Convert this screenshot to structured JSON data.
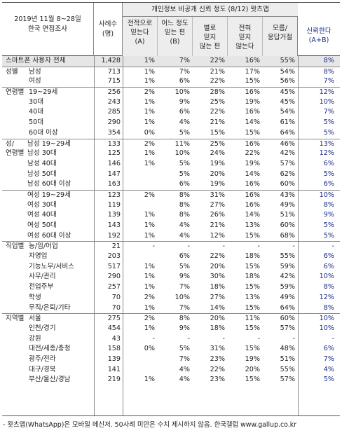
{
  "header": {
    "subject": [
      "2019년 11월 8~28일",
      "한국 면접조사"
    ],
    "count": [
      "사례수",
      "(명)"
    ],
    "group_title": "개인정보 비공개 신뢰 정도 (8/12) 왓츠앱",
    "columns": [
      [
        "전적으로",
        "믿는다",
        "(A)"
      ],
      [
        "어느 정도",
        "믿는 편",
        "(B)"
      ],
      [
        "별로",
        "믿지",
        "않는 편"
      ],
      [
        "전혀",
        "믿지",
        "않는다"
      ],
      [
        "모름/",
        "응답거절"
      ]
    ],
    "trust": [
      "신뢰한다",
      "(A+B)"
    ]
  },
  "rows": [
    {
      "cat": "",
      "label": "스마트폰 사용자 전체",
      "n": "1,428",
      "v": [
        "1%",
        "7%",
        "22%",
        "16%",
        "55%"
      ],
      "t": "8%",
      "grey": true,
      "sep": false,
      "indent": 1
    },
    {
      "cat": "성별",
      "label": "남성",
      "n": "713",
      "v": [
        "1%",
        "7%",
        "21%",
        "17%",
        "54%"
      ],
      "t": "8%",
      "grey": false,
      "sep": true,
      "indent": 2
    },
    {
      "cat": "",
      "label": "여성",
      "n": "715",
      "v": [
        "1%",
        "6%",
        "22%",
        "15%",
        "56%"
      ],
      "t": "7%",
      "grey": false,
      "sep": false,
      "indent": 2
    },
    {
      "cat": "연령별",
      "label": "19~29세",
      "n": "256",
      "v": [
        "2%",
        "10%",
        "28%",
        "16%",
        "45%"
      ],
      "t": "12%",
      "grey": false,
      "sep": true,
      "indent": 2
    },
    {
      "cat": "",
      "label": "30대",
      "n": "243",
      "v": [
        "1%",
        "9%",
        "25%",
        "19%",
        "45%"
      ],
      "t": "10%",
      "grey": false,
      "sep": false,
      "indent": 2
    },
    {
      "cat": "",
      "label": "40대",
      "n": "285",
      "v": [
        "1%",
        "6%",
        "22%",
        "16%",
        "54%"
      ],
      "t": "7%",
      "grey": false,
      "sep": false,
      "indent": 2
    },
    {
      "cat": "",
      "label": "50대",
      "n": "290",
      "v": [
        "1%",
        "4%",
        "21%",
        "14%",
        "61%"
      ],
      "t": "5%",
      "grey": false,
      "sep": false,
      "indent": 2
    },
    {
      "cat": "",
      "label": "60대 이상",
      "n": "354",
      "v": [
        "0%",
        "5%",
        "15%",
        "15%",
        "64%"
      ],
      "t": "5%",
      "grey": false,
      "sep": false,
      "indent": 2
    },
    {
      "cat": "성/",
      "label": "남성 19~29세",
      "n": "133",
      "v": [
        "2%",
        "11%",
        "25%",
        "16%",
        "46%"
      ],
      "t": "13%",
      "grey": false,
      "sep": true,
      "indent": 3
    },
    {
      "cat": "연령별",
      "label": "남성 30대",
      "n": "125",
      "v": [
        "1%",
        "10%",
        "24%",
        "22%",
        "42%"
      ],
      "t": "12%",
      "grey": false,
      "sep": false,
      "indent": 3
    },
    {
      "cat": "",
      "label": "남성 40대",
      "n": "146",
      "v": [
        "1%",
        "5%",
        "19%",
        "19%",
        "57%"
      ],
      "t": "6%",
      "grey": false,
      "sep": false,
      "indent": 3
    },
    {
      "cat": "",
      "label": "남성 50대",
      "n": "147",
      "v": [
        "",
        "5%",
        "20%",
        "14%",
        "62%"
      ],
      "t": "5%",
      "grey": false,
      "sep": false,
      "indent": 3
    },
    {
      "cat": "",
      "label": "남성 60대 이상",
      "n": "163",
      "v": [
        "",
        "6%",
        "19%",
        "16%",
        "60%"
      ],
      "t": "6%",
      "grey": false,
      "sep": false,
      "indent": 3
    },
    {
      "cat": "",
      "label": "여성 19~29세",
      "n": "123",
      "v": [
        "2%",
        "8%",
        "31%",
        "16%",
        "43%"
      ],
      "t": "10%",
      "grey": false,
      "sep": true,
      "indent": 3
    },
    {
      "cat": "",
      "label": "여성 30대",
      "n": "119",
      "v": [
        "",
        "8%",
        "27%",
        "16%",
        "49%"
      ],
      "t": "8%",
      "grey": false,
      "sep": false,
      "indent": 3
    },
    {
      "cat": "",
      "label": "여성 40대",
      "n": "139",
      "v": [
        "1%",
        "8%",
        "26%",
        "14%",
        "51%"
      ],
      "t": "9%",
      "grey": false,
      "sep": false,
      "indent": 3
    },
    {
      "cat": "",
      "label": "여성 50대",
      "n": "143",
      "v": [
        "1%",
        "4%",
        "21%",
        "13%",
        "60%"
      ],
      "t": "5%",
      "grey": false,
      "sep": false,
      "indent": 3
    },
    {
      "cat": "",
      "label": "여성 60대 이상",
      "n": "192",
      "v": [
        "1%",
        "4%",
        "12%",
        "15%",
        "68%"
      ],
      "t": "5%",
      "grey": false,
      "sep": false,
      "indent": 3
    },
    {
      "cat": "직업별",
      "label": "농/임/어업",
      "n": "21",
      "v": [
        "-",
        "-",
        "-",
        "-",
        "-"
      ],
      "t": "-",
      "grey": false,
      "sep": true,
      "indent": 4
    },
    {
      "cat": "",
      "label": "자영업",
      "n": "203",
      "v": [
        "",
        "6%",
        "22%",
        "18%",
        "55%"
      ],
      "t": "6%",
      "grey": false,
      "sep": false,
      "indent": 4
    },
    {
      "cat": "",
      "label": "기능노무/서비스",
      "n": "517",
      "v": [
        "1%",
        "5%",
        "20%",
        "15%",
        "59%"
      ],
      "t": "6%",
      "grey": false,
      "sep": false,
      "indent": 4
    },
    {
      "cat": "",
      "label": "사무/관리",
      "n": "290",
      "v": [
        "1%",
        "9%",
        "30%",
        "18%",
        "42%"
      ],
      "t": "10%",
      "grey": false,
      "sep": false,
      "indent": 4
    },
    {
      "cat": "",
      "label": "전업주부",
      "n": "257",
      "v": [
        "1%",
        "7%",
        "18%",
        "15%",
        "59%"
      ],
      "t": "8%",
      "grey": false,
      "sep": false,
      "indent": 4
    },
    {
      "cat": "",
      "label": "학생",
      "n": "70",
      "v": [
        "2%",
        "10%",
        "27%",
        "13%",
        "49%"
      ],
      "t": "12%",
      "grey": false,
      "sep": false,
      "indent": 4
    },
    {
      "cat": "",
      "label": "무직/은퇴/기타",
      "n": "70",
      "v": [
        "1%",
        "7%",
        "14%",
        "15%",
        "64%"
      ],
      "t": "8%",
      "grey": false,
      "sep": false,
      "indent": 4
    },
    {
      "cat": "지역별",
      "label": "서울",
      "n": "275",
      "v": [
        "2%",
        "8%",
        "20%",
        "11%",
        "60%"
      ],
      "t": "10%",
      "grey": false,
      "sep": true,
      "indent": 4
    },
    {
      "cat": "",
      "label": "인천/경기",
      "n": "454",
      "v": [
        "1%",
        "9%",
        "18%",
        "15%",
        "57%"
      ],
      "t": "10%",
      "grey": false,
      "sep": false,
      "indent": 4
    },
    {
      "cat": "",
      "label": "강원",
      "n": "43",
      "v": [
        "-",
        "-",
        "-",
        "-",
        "-"
      ],
      "t": "-",
      "grey": false,
      "sep": false,
      "indent": 4
    },
    {
      "cat": "",
      "label": "대전/세종/충청",
      "n": "158",
      "v": [
        "0%",
        "5%",
        "31%",
        "15%",
        "48%"
      ],
      "t": "6%",
      "grey": false,
      "sep": false,
      "indent": 4
    },
    {
      "cat": "",
      "label": "광주/전라",
      "n": "139",
      "v": [
        "",
        "7%",
        "23%",
        "19%",
        "51%"
      ],
      "t": "7%",
      "grey": false,
      "sep": false,
      "indent": 4
    },
    {
      "cat": "",
      "label": "대구/경북",
      "n": "141",
      "v": [
        "",
        "4%",
        "22%",
        "20%",
        "55%"
      ],
      "t": "4%",
      "grey": false,
      "sep": false,
      "indent": 4
    },
    {
      "cat": "",
      "label": "부산/울산/경남",
      "n": "219",
      "v": [
        "1%",
        "4%",
        "23%",
        "15%",
        "57%"
      ],
      "t": "5%",
      "grey": false,
      "sep": false,
      "indent": 4
    }
  ],
  "footnote": "- 왓츠앱(WhatsApp)은 모바일 메신저. 50사례 미만은 수치 제시하지 않음. 한국갤럽 www.gallup.co.kr"
}
